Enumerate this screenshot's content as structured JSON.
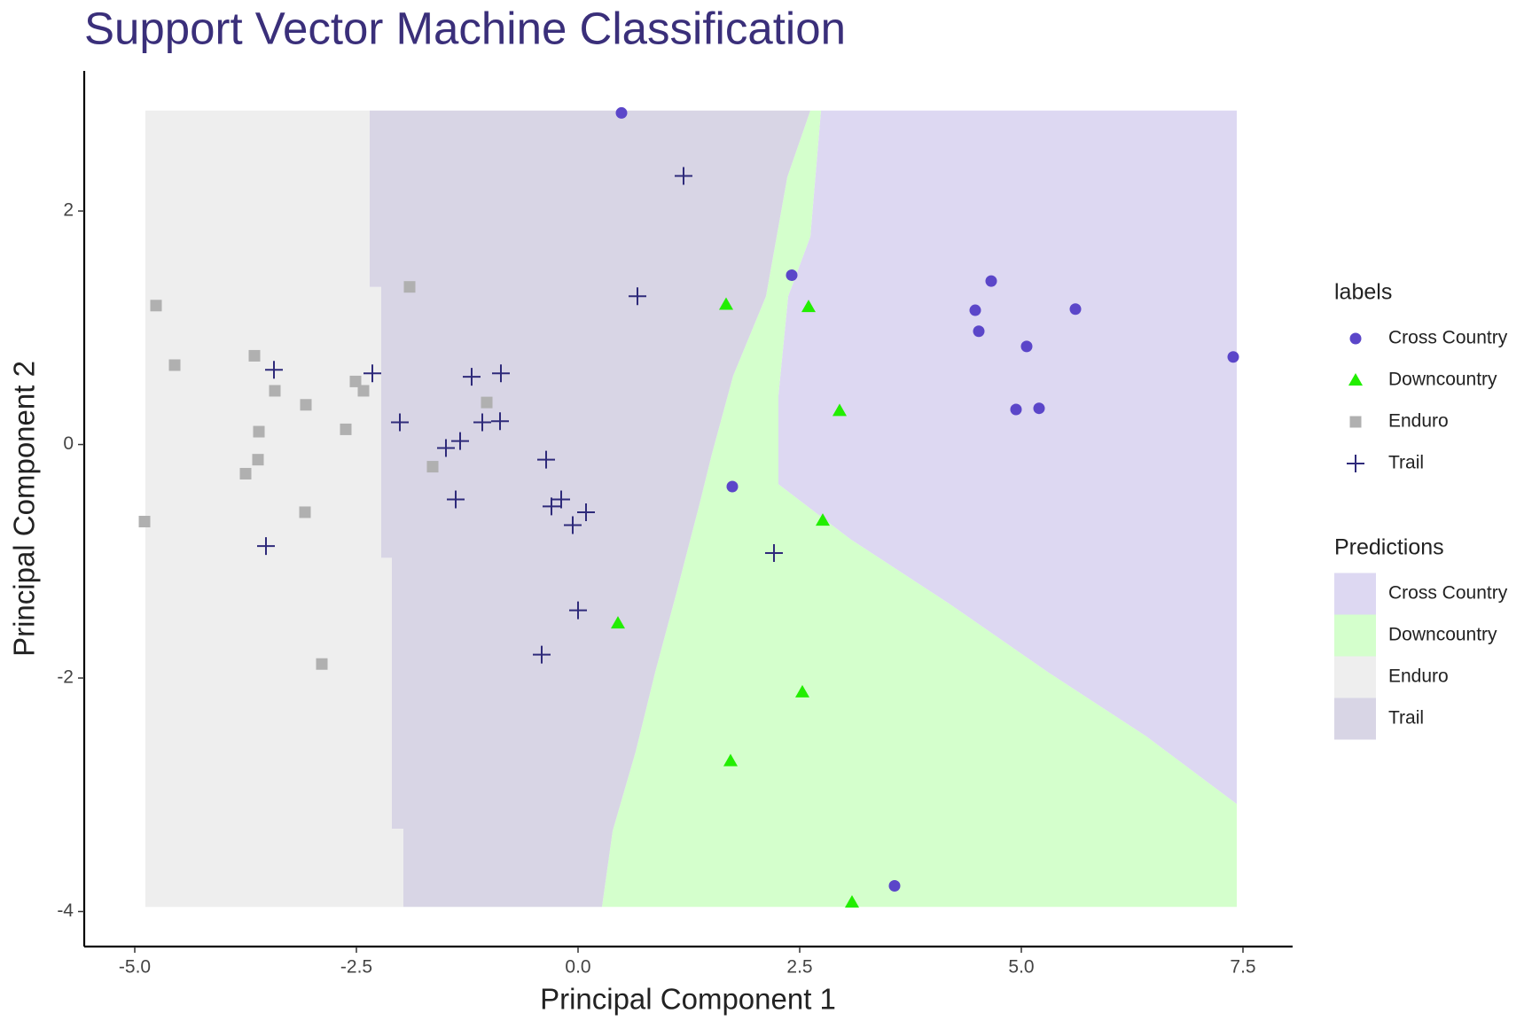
{
  "chart_data": {
    "type": "scatter",
    "title": "Support Vector Machine Classification",
    "x_label": "Principal Component 1",
    "y_label": "Principal Component 2",
    "xlim": [
      -5.57,
      8.06
    ],
    "ylim": [
      -4.3,
      3.2
    ],
    "xticks": [
      {
        "value": -5,
        "label": "-5.0"
      },
      {
        "value": -2.5,
        "label": "-2.5"
      },
      {
        "value": 0,
        "label": "0.0"
      },
      {
        "value": 2.5,
        "label": "2.5"
      },
      {
        "value": 5,
        "label": "5.0"
      },
      {
        "value": 7.5,
        "label": "7.5"
      }
    ],
    "yticks": [
      -4,
      -2,
      0,
      2
    ],
    "grid": false,
    "legend_title": "labels",
    "regions_legend_title": "Predictions",
    "regions": [
      {
        "name": "Cross Country",
        "color": "#ddd8f2",
        "polygon": [
          [
            2.74,
            2.86
          ],
          [
            7.43,
            2.86
          ],
          [
            7.43,
            -3.08
          ],
          [
            6.41,
            -2.5
          ],
          [
            5.3,
            -1.95
          ],
          [
            4.18,
            -1.36
          ],
          [
            3.07,
            -0.81
          ],
          [
            2.26,
            -0.34
          ],
          [
            2.26,
            0.42
          ],
          [
            2.37,
            1.27
          ],
          [
            2.62,
            1.78
          ]
        ]
      },
      {
        "name": "Downcountry",
        "color": "#d4ffcc",
        "polygon": [
          [
            2.62,
            2.86
          ],
          [
            2.36,
            2.29
          ],
          [
            2.12,
            1.27
          ],
          [
            1.75,
            0.59
          ],
          [
            1.51,
            -0.08
          ],
          [
            1.37,
            -0.51
          ],
          [
            1.11,
            -1.27
          ],
          [
            0.87,
            -1.95
          ],
          [
            0.65,
            -2.63
          ],
          [
            0.39,
            -3.31
          ],
          [
            0.27,
            -3.96
          ],
          [
            7.43,
            -3.96
          ],
          [
            7.43,
            -3.08
          ],
          [
            6.41,
            -2.5
          ],
          [
            5.3,
            -1.95
          ],
          [
            4.18,
            -1.36
          ],
          [
            3.07,
            -0.81
          ],
          [
            2.26,
            -0.34
          ],
          [
            2.26,
            0.42
          ],
          [
            2.37,
            1.27
          ],
          [
            2.62,
            1.78
          ],
          [
            2.74,
            2.86
          ]
        ]
      },
      {
        "name": "Enduro",
        "color": "#eeeeee",
        "polygon": [
          [
            -4.88,
            2.86
          ],
          [
            -2.35,
            2.86
          ],
          [
            -2.35,
            1.35
          ],
          [
            -2.22,
            1.35
          ],
          [
            -2.22,
            -0.97
          ],
          [
            -2.1,
            -0.97
          ],
          [
            -2.1,
            -3.29
          ],
          [
            -1.97,
            -3.29
          ],
          [
            -1.97,
            -3.96
          ],
          [
            -4.88,
            -3.96
          ]
        ]
      },
      {
        "name": "Trail",
        "color": "#d8d5e5",
        "polygon": [
          [
            -2.35,
            2.86
          ],
          [
            2.62,
            2.86
          ],
          [
            2.36,
            2.29
          ],
          [
            2.12,
            1.27
          ],
          [
            1.75,
            0.59
          ],
          [
            1.51,
            -0.08
          ],
          [
            1.37,
            -0.51
          ],
          [
            1.11,
            -1.27
          ],
          [
            0.87,
            -1.95
          ],
          [
            0.65,
            -2.63
          ],
          [
            0.39,
            -3.31
          ],
          [
            0.27,
            -3.96
          ],
          [
            -1.97,
            -3.96
          ],
          [
            -1.97,
            -3.29
          ],
          [
            -2.1,
            -3.29
          ],
          [
            -2.1,
            -0.97
          ],
          [
            -2.22,
            -0.97
          ],
          [
            -2.22,
            1.35
          ],
          [
            -2.35,
            1.35
          ]
        ]
      }
    ],
    "series": [
      {
        "name": "Cross Country",
        "color": "#5b46c9",
        "shape": "circle",
        "x": [
          0.49,
          2.41,
          4.66,
          4.48,
          4.52,
          5.61,
          5.06,
          7.39,
          4.94,
          5.2,
          1.74,
          3.57
        ],
        "values": [
          2.84,
          1.45,
          1.4,
          1.15,
          0.97,
          1.16,
          0.84,
          0.75,
          0.3,
          0.31,
          -0.36,
          -3.78
        ]
      },
      {
        "name": "Downcountry",
        "color": "#22ee00",
        "shape": "triangle",
        "x": [
          1.67,
          2.6,
          2.95,
          2.76,
          0.45,
          2.53,
          1.72,
          3.09
        ],
        "values": [
          1.2,
          1.18,
          0.29,
          -0.65,
          -1.53,
          -2.12,
          -2.71,
          -3.92
        ]
      },
      {
        "name": "Enduro",
        "color": "#b0b0b0",
        "shape": "square",
        "x": [
          -4.76,
          -4.55,
          -3.65,
          -3.42,
          -2.51,
          -2.42,
          -1.9,
          -3.07,
          -3.6,
          -2.62,
          -1.03,
          -3.61,
          -3.75,
          -1.64,
          -3.08,
          -4.89,
          -2.89
        ],
        "values": [
          1.19,
          0.68,
          0.76,
          0.46,
          0.54,
          0.46,
          1.35,
          0.34,
          0.11,
          0.13,
          0.36,
          -0.13,
          -0.25,
          -0.19,
          -0.58,
          -0.66,
          -1.88
        ]
      },
      {
        "name": "Trail",
        "color": "#2e2a7a",
        "shape": "plus",
        "x": [
          1.19,
          0.67,
          -3.43,
          -2.32,
          -1.2,
          -0.87,
          -2.01,
          -1.08,
          -0.88,
          -1.33,
          -1.49,
          -0.36,
          -1.38,
          -0.19,
          -0.3,
          0.09,
          -0.06,
          -3.52,
          2.21,
          0.0,
          -0.41
        ],
        "values": [
          2.3,
          1.27,
          0.64,
          0.61,
          0.58,
          0.61,
          0.19,
          0.19,
          0.2,
          0.03,
          -0.03,
          -0.13,
          -0.47,
          -0.47,
          -0.53,
          -0.58,
          -0.69,
          -0.87,
          -0.93,
          -1.42,
          -1.8
        ]
      }
    ]
  }
}
